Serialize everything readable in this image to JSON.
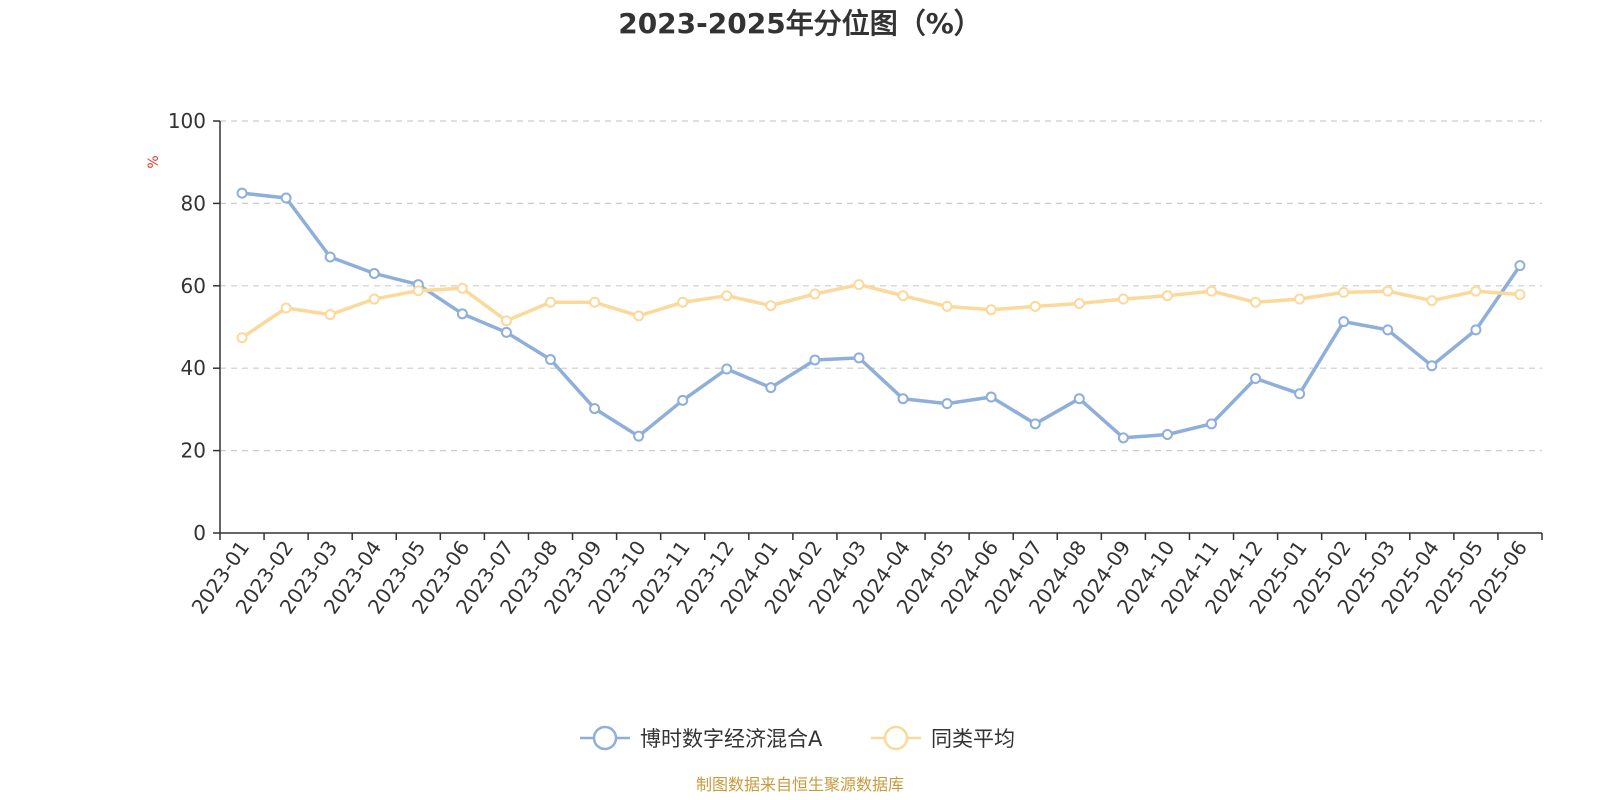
{
  "chart_data": {
    "type": "line",
    "title": "2023-2025年分位图（%）",
    "ylabel": "%",
    "ylim": [
      0,
      100
    ],
    "yticks": [
      0,
      20,
      40,
      60,
      80,
      100
    ],
    "grid": true,
    "legend_position": "bottom-center",
    "categories": [
      "2023-01",
      "2023-02",
      "2023-03",
      "2023-04",
      "2023-05",
      "2023-06",
      "2023-07",
      "2023-08",
      "2023-09",
      "2023-10",
      "2023-11",
      "2023-12",
      "2024-01",
      "2024-02",
      "2024-03",
      "2024-04",
      "2024-05",
      "2024-06",
      "2024-07",
      "2024-08",
      "2024-09",
      "2024-10",
      "2024-11",
      "2024-12",
      "2025-01",
      "2025-02",
      "2025-03",
      "2025-04",
      "2025-05",
      "2025-06"
    ],
    "series": [
      {
        "name": "博时数字经济混合A",
        "color": "#8eaedb",
        "values": [
          82.5,
          81.3,
          67.0,
          63.0,
          60.3,
          53.2,
          48.7,
          42.1,
          30.2,
          23.5,
          32.2,
          39.8,
          35.3,
          42.0,
          42.5,
          32.6,
          31.4,
          33.0,
          26.5,
          32.6,
          23.1,
          23.9,
          26.5,
          37.5,
          33.8,
          51.3,
          49.3,
          40.6,
          49.3,
          64.9
        ]
      },
      {
        "name": "同类平均",
        "color": "#fbd99b",
        "values": [
          47.4,
          54.6,
          53.0,
          56.8,
          58.8,
          59.4,
          51.5,
          56.0,
          56.0,
          52.7,
          56.0,
          57.6,
          55.2,
          58.0,
          60.3,
          57.6,
          55.0,
          54.2,
          55.0,
          55.7,
          56.8,
          57.6,
          58.7,
          56.0,
          56.8,
          58.4,
          58.7,
          56.4,
          58.7,
          57.9
        ]
      }
    ]
  },
  "source_text": "制图数据来自恒生聚源数据库",
  "colors": {
    "axis": "#333333",
    "grid": "#cccccc",
    "unit": "#e8382f",
    "source": "#c99a3c"
  }
}
